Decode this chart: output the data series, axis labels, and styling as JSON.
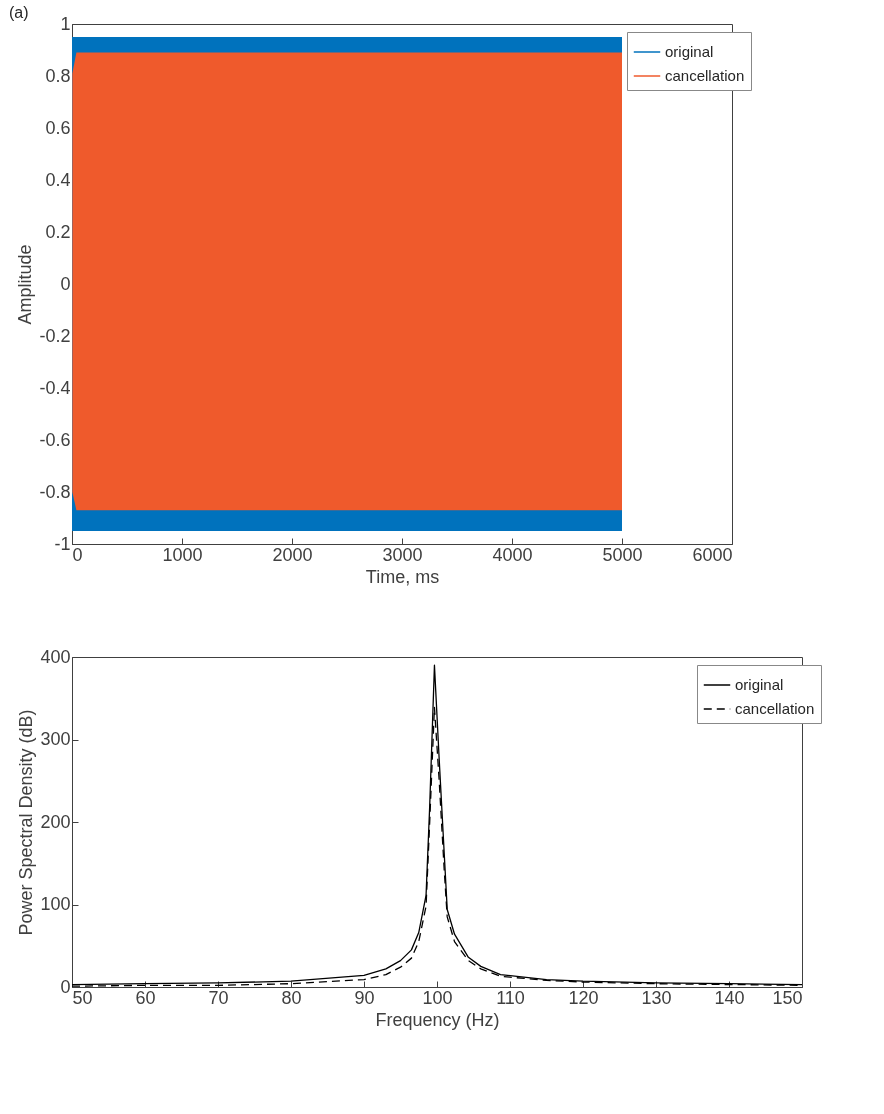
{
  "chart_data": [
    {
      "type": "line",
      "annotations": [
        "(a)"
      ],
      "xlabel": "Time, ms",
      "ylabel": "Amplitude",
      "xlim": [
        0,
        6000
      ],
      "xticks": [
        0,
        1000,
        2000,
        3000,
        4000,
        5000,
        6000
      ],
      "ylim": [
        -1,
        1
      ],
      "yticks": [
        -1,
        -0.8,
        -0.6,
        -0.4,
        -0.2,
        0,
        0.2,
        0.4,
        0.6,
        0.8,
        1
      ],
      "grid": false,
      "legend": "top right",
      "series": [
        {
          "name": "original",
          "color": "#0072bd",
          "x": [
            0,
            5000
          ],
          "values": [
            null,
            null
          ],
          "lower": [
            -0.95,
            -0.95
          ],
          "upper": [
            0.95,
            0.95
          ]
        },
        {
          "name": "cancellation",
          "color": "#ef5a2c",
          "x": [
            3,
            40,
            5000
          ],
          "values": [
            null,
            null,
            null
          ],
          "lower": [
            -0.8,
            -0.87,
            -0.87
          ],
          "upper": [
            0.81,
            0.89,
            0.89
          ]
        }
      ]
    },
    {
      "type": "line",
      "xlabel": "Frequency (Hz)",
      "ylabel": "Power Spectral Density (dB)",
      "xlim": [
        50,
        150
      ],
      "xticks": [
        50,
        60,
        70,
        80,
        90,
        100,
        110,
        120,
        130,
        140,
        150
      ],
      "ylim": [
        0,
        400
      ],
      "yticks": [
        0,
        100,
        200,
        300,
        400
      ],
      "grid": false,
      "legend": "top right",
      "x": [
        50,
        60,
        70,
        80,
        90,
        93,
        95,
        96.5,
        97.5,
        98.5,
        99,
        99.65,
        100.3,
        101,
        101.4,
        102.4,
        104.3,
        106,
        108.7,
        115,
        120,
        130,
        140,
        150
      ],
      "series": [
        {
          "name": "original",
          "color": "#000000",
          "line_style": "solid",
          "values": [
            3,
            4,
            5,
            7,
            14,
            22,
            32,
            45,
            66,
            111,
            219,
            390,
            276,
            160,
            94,
            64,
            36,
            25,
            15,
            9,
            7,
            5,
            4,
            3
          ]
        },
        {
          "name": "cancellation",
          "color": "#000000",
          "line_style": "dashed",
          "values": [
            1,
            2,
            2,
            4,
            9,
            15,
            24,
            35,
            55,
            98,
            200,
            339,
            250,
            140,
            85,
            55,
            32,
            22,
            13,
            8,
            6,
            4,
            3,
            2
          ]
        }
      ]
    }
  ]
}
